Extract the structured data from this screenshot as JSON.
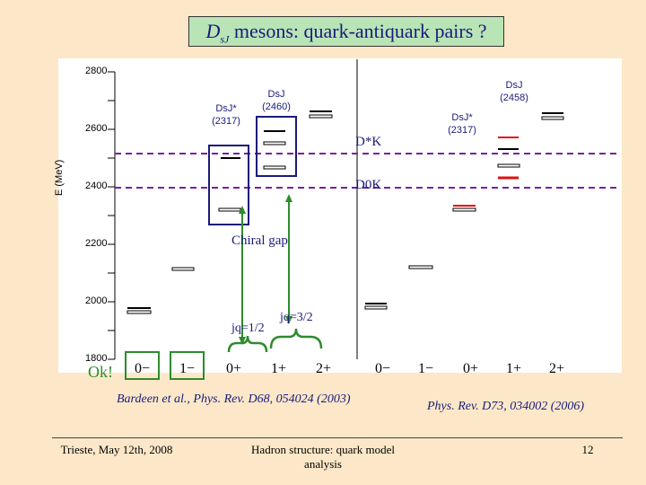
{
  "slide": {
    "title_prefix": "D",
    "title_sub": "sJ",
    "title_suffix": " mesons: quark-antiquark pairs ?",
    "footer_left": "Trieste, May 12th, 2008",
    "footer_center": "Hadron structure: quark model analysis",
    "footer_page": "12"
  },
  "plot": {
    "ylabel": "E (MeV)",
    "yticks": [
      "2800",
      "2600",
      "2400",
      "2200",
      "2000",
      "1800"
    ],
    "threshold_dstar_k": "D*K",
    "threshold_d0_k": "D0K",
    "chiral_gap": "Chiral gap",
    "jq_half": "jq=1/2",
    "jq_three_half": "jq=3/2",
    "ok_label": "Ok!",
    "left_jp": [
      "0−",
      "1−",
      "0+",
      "1+",
      "2+"
    ],
    "right_jp": [
      "0−",
      "1−",
      "0+",
      "1+",
      "2+"
    ],
    "ann_2317_left": "DsJ* (2317)",
    "ann_2460": "DsJ (2460)",
    "ann_2317_right": "DsJ* (2317)",
    "ann_2458": "DsJ (2458)"
  },
  "citations": {
    "left": "Bardeen et al., Phys. Rev. D68, 054024 (2003)",
    "right": "Phys. Rev. D73, 034002 (2006)"
  },
  "colors": {
    "background": "#fce8c8",
    "title_box": "#b9e4b6",
    "threshold": "#7a1fa0",
    "arrow": "#2e8b2e",
    "box_blue": "#1a1a7a",
    "exp_red": "#e01010"
  }
}
